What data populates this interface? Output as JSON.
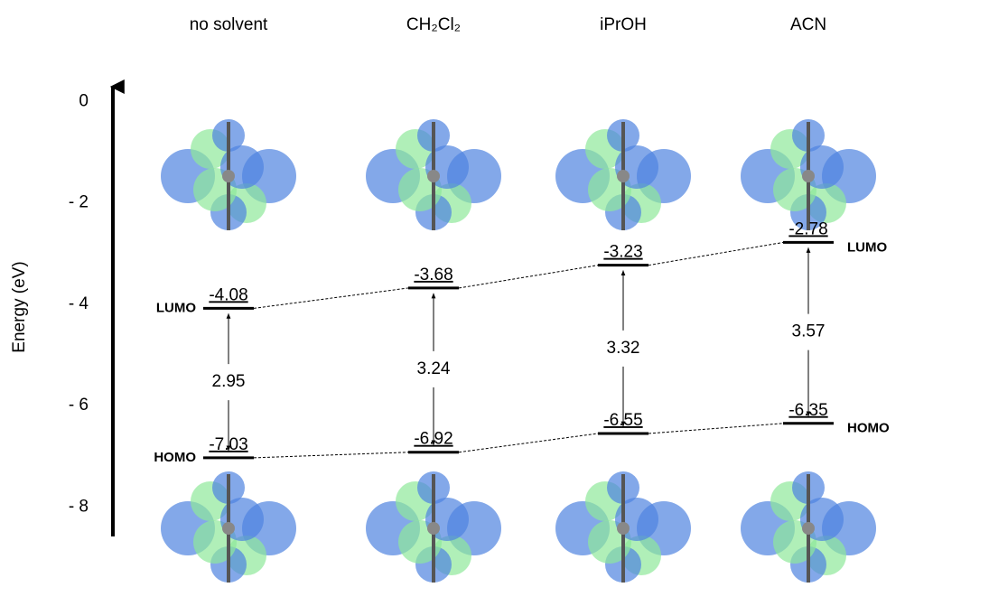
{
  "chart_data": {
    "type": "energy_levels",
    "categories": [
      "no solvent",
      "CH₂Cl₂",
      "iPrOH",
      "ACN"
    ],
    "series": [
      {
        "name": "LUMO",
        "values": [
          -4.08,
          -3.68,
          -3.23,
          -2.78
        ]
      },
      {
        "name": "HOMO",
        "values": [
          -7.03,
          -6.92,
          -6.55,
          -6.35
        ]
      }
    ],
    "gaps": [
      2.95,
      3.24,
      3.32,
      3.57
    ],
    "y_label": "Energy (eV)",
    "ylim": [
      -8.6,
      0.4
    ],
    "yticks": [
      0,
      {
        "value": -2,
        "label": "- 2"
      },
      {
        "value": -4,
        "label": "- 4"
      },
      {
        "value": -6,
        "label": "- 6"
      },
      {
        "value": -8,
        "label": "- 8"
      }
    ]
  }
}
